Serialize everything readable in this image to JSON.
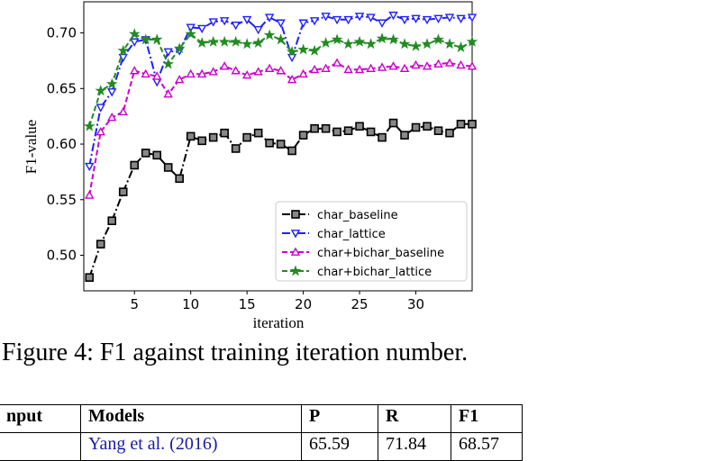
{
  "chart_data": {
    "type": "line",
    "xlabel": "iteration",
    "ylabel": "F1-value",
    "xlim": [
      0.5,
      35
    ],
    "ylim": [
      0.468,
      0.728
    ],
    "xticks": [
      5,
      10,
      15,
      20,
      25,
      30
    ],
    "yticks": [
      0.5,
      0.55,
      0.6,
      0.65,
      0.7
    ],
    "xtick_labels": [
      "5",
      "10",
      "15",
      "20",
      "25",
      "30"
    ],
    "ytick_labels": [
      "0.50",
      "0.55",
      "0.60",
      "0.65",
      "0.70"
    ],
    "legend_position": "lower-right",
    "x": [
      1,
      2,
      3,
      4,
      5,
      6,
      7,
      8,
      9,
      10,
      11,
      12,
      13,
      14,
      15,
      16,
      17,
      18,
      19,
      20,
      21,
      22,
      23,
      24,
      25,
      26,
      27,
      28,
      29,
      30,
      31,
      32,
      33,
      34,
      35
    ],
    "series": [
      {
        "name": "char_baseline",
        "color": "#000000",
        "marker": "square",
        "line": "dashdot",
        "values": [
          0.48,
          0.51,
          0.531,
          0.557,
          0.581,
          0.592,
          0.59,
          0.579,
          0.569,
          0.607,
          0.603,
          0.606,
          0.61,
          0.596,
          0.606,
          0.61,
          0.601,
          0.6,
          0.594,
          0.608,
          0.614,
          0.614,
          0.611,
          0.612,
          0.616,
          0.611,
          0.606,
          0.619,
          0.608,
          0.615,
          0.616,
          0.612,
          0.61,
          0.618,
          0.618
        ]
      },
      {
        "name": "char_lattice",
        "color": "#1f1fff",
        "marker": "triangle-down",
        "line": "dashdot",
        "values": [
          0.58,
          0.633,
          0.647,
          0.678,
          0.692,
          0.694,
          0.656,
          0.683,
          0.684,
          0.705,
          0.704,
          0.71,
          0.711,
          0.707,
          0.712,
          0.703,
          0.714,
          0.709,
          0.678,
          0.709,
          0.711,
          0.715,
          0.712,
          0.712,
          0.715,
          0.714,
          0.709,
          0.716,
          0.712,
          0.713,
          0.712,
          0.713,
          0.714,
          0.713,
          0.714
        ]
      },
      {
        "name": "char+bichar_baseline",
        "color": "#cc00cc",
        "marker": "triangle-up",
        "line": "dashed",
        "values": [
          0.554,
          0.611,
          0.624,
          0.629,
          0.666,
          0.663,
          0.661,
          0.645,
          0.658,
          0.663,
          0.663,
          0.665,
          0.67,
          0.666,
          0.662,
          0.665,
          0.668,
          0.666,
          0.658,
          0.663,
          0.667,
          0.668,
          0.673,
          0.667,
          0.667,
          0.668,
          0.669,
          0.67,
          0.668,
          0.671,
          0.67,
          0.672,
          0.673,
          0.671,
          0.67
        ]
      },
      {
        "name": "char+bichar_lattice",
        "color": "#228B22",
        "marker": "star",
        "line": "dashed",
        "values": [
          0.616,
          0.648,
          0.654,
          0.684,
          0.699,
          0.694,
          0.694,
          0.672,
          0.686,
          0.699,
          0.691,
          0.692,
          0.692,
          0.692,
          0.69,
          0.691,
          0.698,
          0.694,
          0.683,
          0.685,
          0.684,
          0.691,
          0.694,
          0.69,
          0.692,
          0.69,
          0.695,
          0.694,
          0.69,
          0.688,
          0.69,
          0.694,
          0.69,
          0.687,
          0.692
        ]
      }
    ]
  },
  "caption": "Figure 4: F1 against training iteration number.",
  "table": {
    "headers": [
      "nput",
      "Models",
      "P",
      "R",
      "F1"
    ],
    "first_row": [
      "",
      "Yang et al. (2016)",
      "65.59",
      "71.84",
      "68.57"
    ]
  }
}
